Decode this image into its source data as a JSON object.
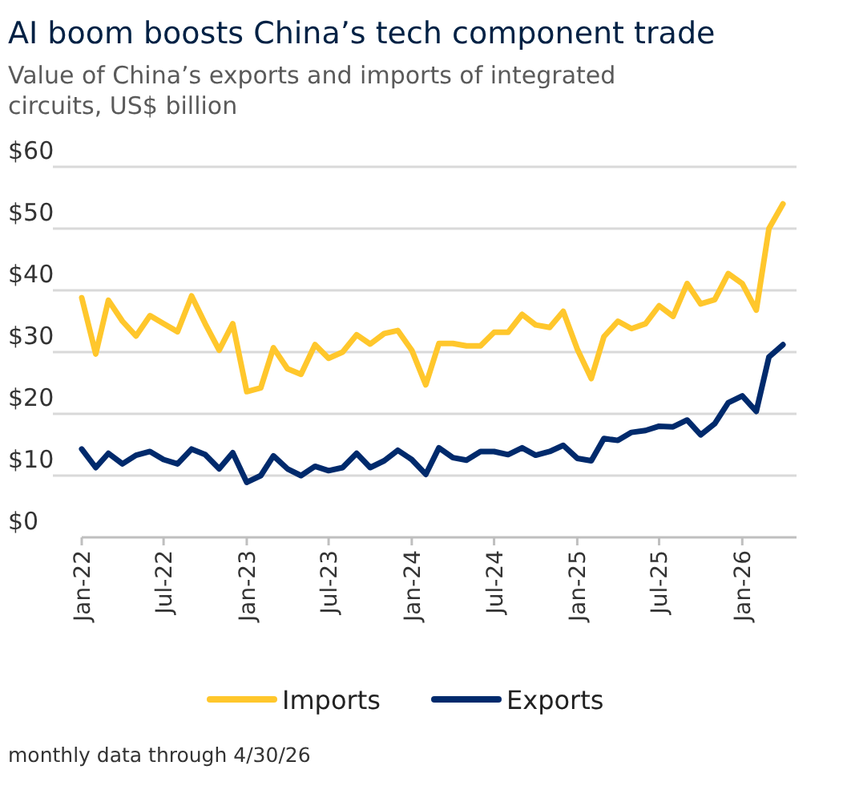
{
  "chart_data": {
    "type": "line",
    "title": "AI boom boosts China’s tech component trade",
    "subtitle": "Value of China’s exports and imports of integrated circuits, US$ billion",
    "x": [
      "2022-01",
      "2022-02",
      "2022-03",
      "2022-04",
      "2022-05",
      "2022-06",
      "2022-07",
      "2022-08",
      "2022-09",
      "2022-10",
      "2022-11",
      "2022-12",
      "2023-01",
      "2023-02",
      "2023-03",
      "2023-04",
      "2023-05",
      "2023-06",
      "2023-07",
      "2023-08",
      "2023-09",
      "2023-10",
      "2023-11",
      "2023-12",
      "2024-01",
      "2024-02",
      "2024-03",
      "2024-04",
      "2024-05",
      "2024-06",
      "2024-07",
      "2024-08",
      "2024-09",
      "2024-10",
      "2024-11",
      "2024-12",
      "2025-01",
      "2025-02",
      "2025-03",
      "2025-04",
      "2025-05",
      "2025-06",
      "2025-07",
      "2025-08",
      "2025-09",
      "2025-10",
      "2025-11",
      "2025-12",
      "2026-01",
      "2026-02",
      "2026-03",
      "2026-04"
    ],
    "series": [
      {
        "name": "Imports",
        "color": "#ffc72c",
        "values": [
          38.8,
          29.7,
          38.4,
          35,
          32.6,
          35.9,
          34.6,
          33.3,
          39.1,
          34.6,
          30.3,
          34.6,
          23.6,
          24.2,
          30.7,
          27.3,
          26.4,
          31.2,
          29,
          30,
          32.8,
          31.3,
          33,
          33.5,
          30.3,
          24.7,
          31.4,
          31.4,
          31,
          31,
          33.2,
          33.2,
          36.1,
          34.4,
          34,
          36.6,
          30.5,
          25.7,
          32.5,
          35,
          33.8,
          34.6,
          37.5,
          35.8,
          41.1,
          37.8,
          38.5,
          42.7,
          41.1,
          36.8,
          50,
          54
        ]
      },
      {
        "name": "Exports",
        "color": "#002a6c",
        "values": [
          14.3,
          11.3,
          13.6,
          11.9,
          13.3,
          13.9,
          12.6,
          11.9,
          14.3,
          13.4,
          11.1,
          13.7,
          8.9,
          10,
          13.2,
          11.1,
          10,
          11.5,
          10.8,
          11.3,
          13.6,
          11.3,
          12.4,
          14.1,
          12.6,
          10.2,
          14.5,
          12.9,
          12.5,
          13.9,
          13.9,
          13.4,
          14.5,
          13.3,
          13.9,
          14.9,
          12.8,
          12.4,
          16,
          15.7,
          17,
          17.3,
          18,
          17.9,
          19,
          16.6,
          18.4,
          21.8,
          22.9,
          20.4,
          29.2,
          31.2
        ]
      }
    ],
    "xlim": [
      "2022-01",
      "2026-05"
    ],
    "xticks": [
      {
        "value": "2022-01",
        "label": "Jan-22"
      },
      {
        "value": "2022-07",
        "label": "Jul-22"
      },
      {
        "value": "2023-01",
        "label": "Jan-23"
      },
      {
        "value": "2023-07",
        "label": "Jul-23"
      },
      {
        "value": "2024-01",
        "label": "Jan-24"
      },
      {
        "value": "2024-07",
        "label": "Jul-24"
      },
      {
        "value": "2025-01",
        "label": "Jan-25"
      },
      {
        "value": "2025-07",
        "label": "Jul-25"
      },
      {
        "value": "2026-01",
        "label": "Jan-26"
      }
    ],
    "ylim": [
      0,
      60
    ],
    "yticks": [
      {
        "value": 0,
        "label": "$0"
      },
      {
        "value": 10,
        "label": "$10"
      },
      {
        "value": 20,
        "label": "$20"
      },
      {
        "value": 30,
        "label": "$30"
      },
      {
        "value": 40,
        "label": "$40"
      },
      {
        "value": 50,
        "label": "$50"
      },
      {
        "value": 60,
        "label": "$60"
      }
    ],
    "grid": "y",
    "legend": "bottom",
    "marker": "none",
    "line_style": "solid",
    "annotations": [
      "monthly data through 4/30/26"
    ]
  }
}
